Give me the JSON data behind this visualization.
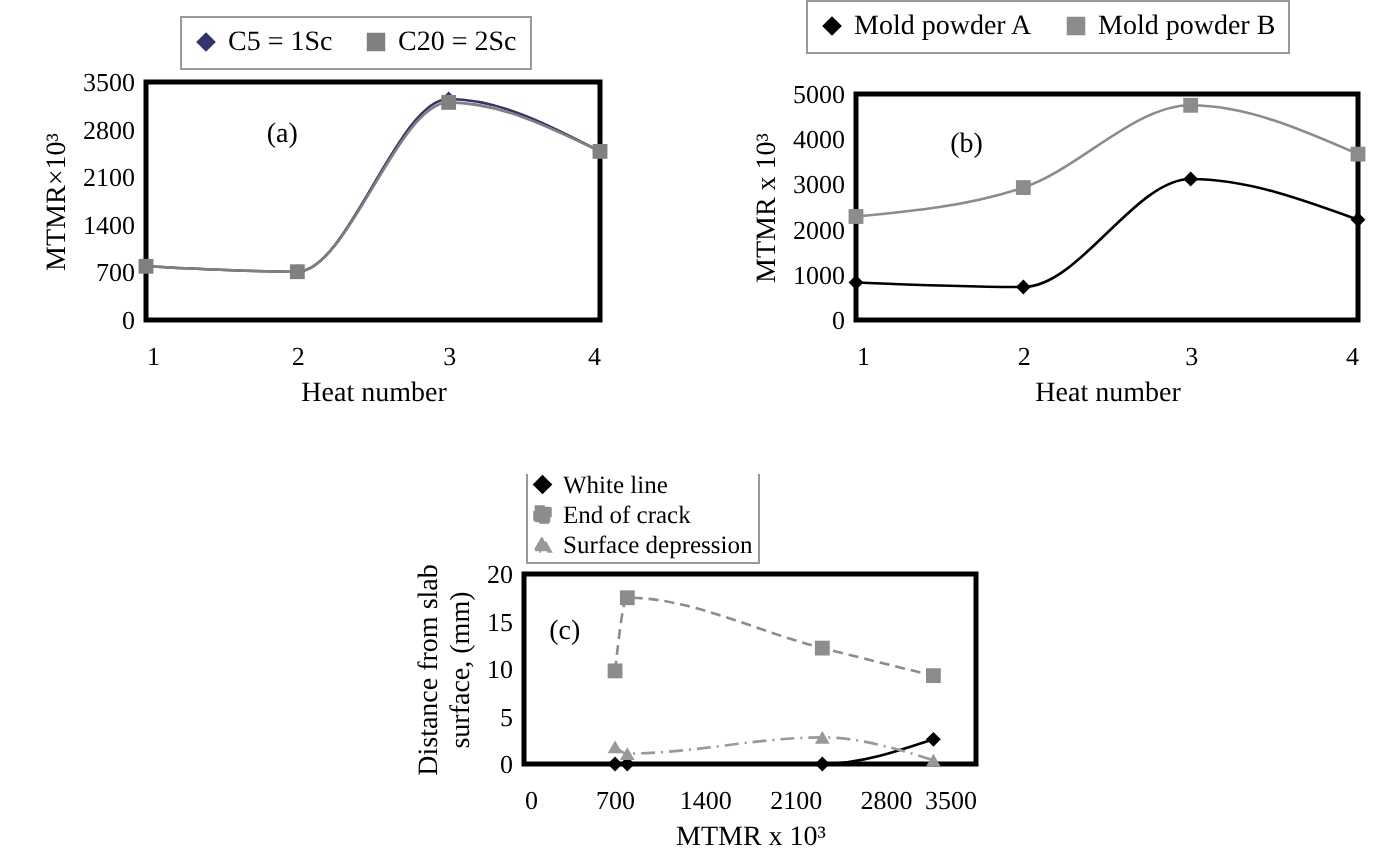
{
  "chart_data": [
    {
      "type": "line",
      "xlabel": "Heat number",
      "ylabel": "MTMR×10³",
      "annotations": [
        "(a)"
      ],
      "x": [
        1,
        2,
        3,
        4
      ],
      "xlim": [
        1,
        4
      ],
      "xticks": [
        1,
        2,
        3,
        4
      ],
      "ylim": [
        0,
        3500
      ],
      "yticks": [
        0,
        700,
        1400,
        2100,
        2800,
        3500
      ],
      "legend": "top",
      "series": [
        {
          "name": "C5 = 1Sc",
          "color": "#33336e",
          "marker": "diamond",
          "line_style": "solid",
          "values": [
            790,
            710,
            3250,
            2480
          ]
        },
        {
          "name": "C20 = 2Sc",
          "color": "#808080",
          "marker": "square",
          "line_style": "solid",
          "values": [
            790,
            710,
            3200,
            2480
          ]
        }
      ]
    },
    {
      "type": "line",
      "xlabel": "Heat number",
      "ylabel": "MTMR x 10³",
      "annotations": [
        "(b)"
      ],
      "x": [
        1,
        2,
        3,
        4
      ],
      "xlim": [
        1,
        4
      ],
      "xticks": [
        1,
        2,
        3,
        4
      ],
      "ylim": [
        0,
        5000
      ],
      "yticks": [
        0,
        1000,
        2000,
        3000,
        4000,
        5000
      ],
      "legend": "top",
      "series": [
        {
          "name": "Mold powder A",
          "color": "#000000",
          "marker": "diamond",
          "line_style": "solid",
          "values": [
            830,
            730,
            3120,
            2220
          ]
        },
        {
          "name": "Mold powder B",
          "color": "#8c8c8c",
          "marker": "square",
          "line_style": "solid",
          "values": [
            2290,
            2930,
            4750,
            3670
          ]
        }
      ]
    },
    {
      "type": "line",
      "xlabel": "MTMR x 10³",
      "ylabel": "Distance from slab surface, (mm)",
      "annotations": [
        "(c)"
      ],
      "x": [
        705,
        800,
        2310,
        3170
      ],
      "xlim": [
        0,
        3500
      ],
      "xticks": [
        0,
        700,
        1400,
        2100,
        2800,
        3500
      ],
      "ylim": [
        0,
        20
      ],
      "yticks": [
        0,
        5,
        10,
        15,
        20
      ],
      "legend": "top",
      "series": [
        {
          "name": "White line",
          "color": "#000000",
          "marker": "diamond",
          "line_style": "solid",
          "values": [
            0,
            0,
            0,
            2.6
          ]
        },
        {
          "name": "End of crack",
          "color": "#8c8c8c",
          "marker": "square",
          "line_style": "dashed",
          "values": [
            9.8,
            17.5,
            12.2,
            9.3
          ]
        },
        {
          "name": "Surface depression",
          "color": "#999999",
          "marker": "triangle",
          "line_style": "dotted",
          "values": [
            1.8,
            1.1,
            2.8,
            0.4
          ]
        }
      ]
    }
  ]
}
